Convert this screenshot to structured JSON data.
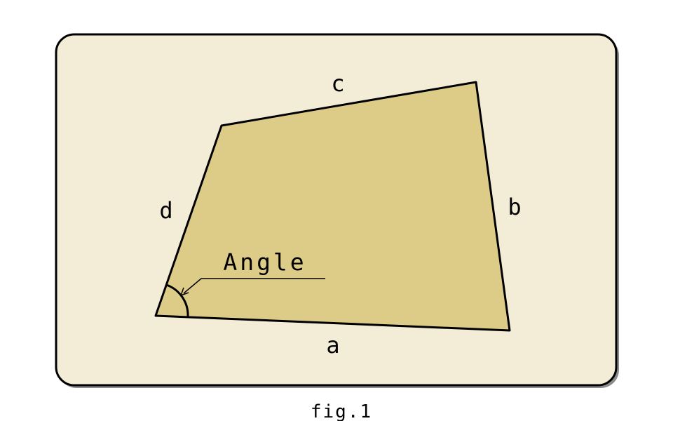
{
  "diagram": {
    "labels": {
      "side_a": "a",
      "side_b": "b",
      "side_c": "c",
      "side_d": "d",
      "angle": "Angle"
    },
    "caption": "fig.1"
  },
  "colors": {
    "card_background": "#F3ECD6",
    "shape_fill": "#DDCB88",
    "stroke": "#000000",
    "shadow": "#666666"
  }
}
